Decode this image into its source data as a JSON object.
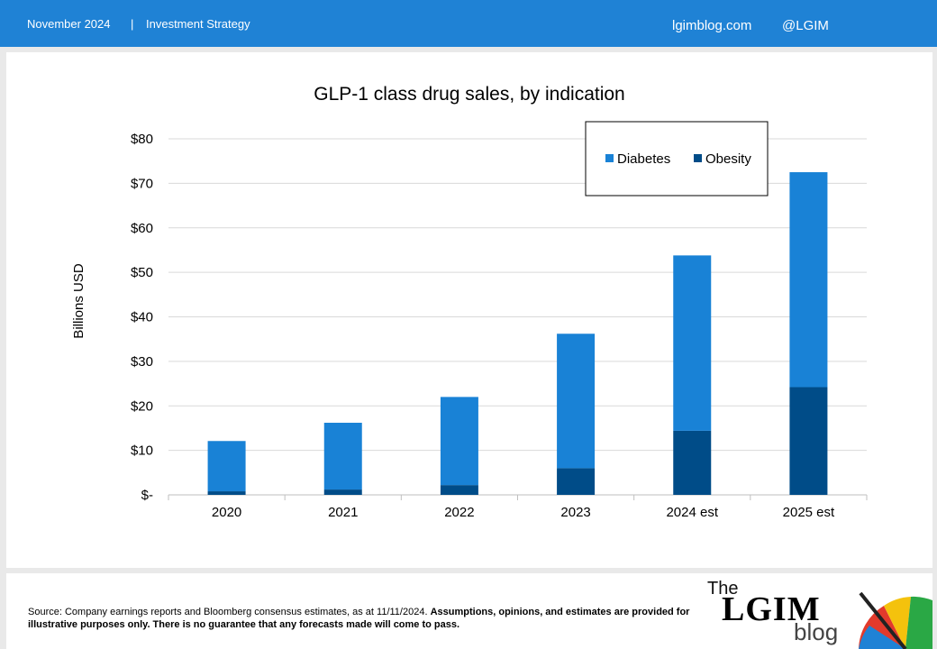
{
  "header": {
    "date": "November 2024",
    "separator": "|",
    "section": "Investment Strategy",
    "site": "lgimblog.com",
    "handle": "@LGIM"
  },
  "chart_data": {
    "type": "bar",
    "stacked": true,
    "title": "GLP-1 class drug sales, by indication",
    "xlabel": "",
    "ylabel": "Billions USD",
    "categories": [
      "2020",
      "2021",
      "2022",
      "2023",
      "2024 est",
      "2025 est"
    ],
    "series": [
      {
        "name": "Obesity",
        "color": "#004c88",
        "values": [
          0.8,
          1.2,
          2.2,
          6.0,
          14.4,
          24.2
        ]
      },
      {
        "name": "Diabetes",
        "color": "#1982d6",
        "values": [
          11.3,
          15.0,
          19.8,
          30.2,
          39.4,
          48.3
        ]
      }
    ],
    "ylim": [
      0,
      80
    ],
    "yticks": [
      0,
      10,
      20,
      30,
      40,
      50,
      60,
      70,
      80
    ],
    "ytick_labels": [
      "$-",
      "$10",
      "$20",
      "$30",
      "$40",
      "$50",
      "$60",
      "$70",
      "$80"
    ],
    "grid": true,
    "legend": {
      "placement": "top-right",
      "order": [
        "Diabetes",
        "Obesity"
      ]
    }
  },
  "footer": {
    "source_text": "Source: Company earnings reports and Bloomberg consensus estimates, as at 11/11/2024. ",
    "disclaimer": "Assumptions, opinions, and estimates are provided for illustrative purposes only. There is no guarantee that any forecasts made will come to pass.",
    "logo": {
      "the": "The",
      "lgim": "LGIM",
      "blog": "blog"
    }
  }
}
